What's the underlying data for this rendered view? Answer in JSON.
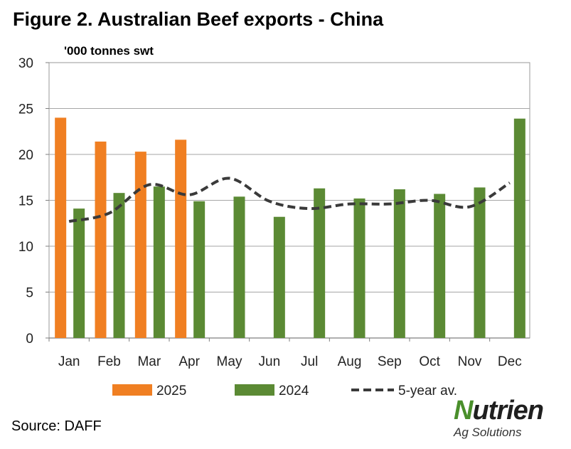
{
  "title": "Figure 2. Australian Beef exports - China",
  "unit_label": "'000 tonnes swt",
  "source": "Source: DAFF",
  "logo": {
    "word_initial": "N",
    "word_rest": "utrien",
    "subtitle": "Ag Solutions",
    "brand_color": "#4a8f2b"
  },
  "chart_data": {
    "type": "bar",
    "categories": [
      "Jan",
      "Feb",
      "Mar",
      "Apr",
      "May",
      "Jun",
      "Jul",
      "Aug",
      "Sep",
      "Oct",
      "Nov",
      "Dec"
    ],
    "ylim": [
      0,
      30
    ],
    "yticks": [
      0,
      5,
      10,
      15,
      20,
      25,
      30
    ],
    "grid": true,
    "legend_position": "bottom",
    "series": [
      {
        "name": "2025",
        "kind": "bar",
        "color": "#f07f22",
        "values": [
          24.0,
          21.4,
          20.3,
          21.6,
          null,
          null,
          null,
          null,
          null,
          null,
          null,
          null
        ]
      },
      {
        "name": "2024",
        "kind": "bar",
        "color": "#5b8a34",
        "values": [
          14.1,
          15.8,
          16.5,
          14.9,
          15.4,
          13.2,
          16.3,
          15.2,
          16.2,
          15.7,
          16.4,
          23.9
        ]
      },
      {
        "name": "5-year av.",
        "kind": "line",
        "style": "dashed",
        "color": "#3a3a3a",
        "values": [
          12.7,
          13.6,
          16.7,
          15.6,
          17.4,
          14.9,
          14.1,
          14.6,
          14.6,
          15.0,
          14.3,
          16.9
        ]
      }
    ]
  }
}
